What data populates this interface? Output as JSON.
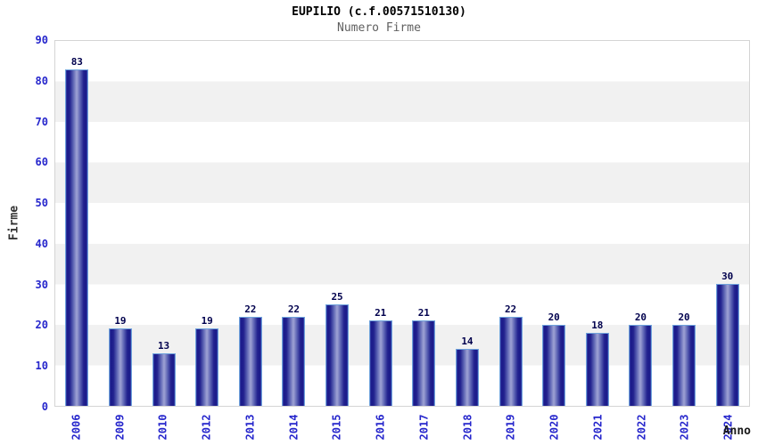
{
  "chart_data": {
    "type": "bar",
    "title": "EUPILIO (c.f.00571510130)",
    "subtitle": "Numero Firme",
    "xlabel": "Anno",
    "ylabel": "Firme",
    "categories": [
      "2006",
      "2009",
      "2010",
      "2012",
      "2013",
      "2014",
      "2015",
      "2016",
      "2017",
      "2018",
      "2019",
      "2020",
      "2021",
      "2022",
      "2023",
      "2024"
    ],
    "values": [
      83,
      19,
      13,
      19,
      22,
      22,
      25,
      21,
      21,
      14,
      22,
      20,
      18,
      20,
      20,
      30
    ],
    "ylim": [
      0,
      90
    ],
    "ytick_step": 10,
    "grid": "alternating-horizontal-bands",
    "legend": "none",
    "colors": {
      "bar_edge_dark": "#191989",
      "bar_center_light": "#9da2d4",
      "bar_outline": "#6fa3dc",
      "axis_tick_label": "#2626cc",
      "value_label": "#00004d",
      "band_gray": "#f1f1f1",
      "band_white": "#ffffff",
      "plot_border": "#d4d4d4",
      "title_color": "#000000",
      "subtitle_color": "#606060"
    }
  }
}
